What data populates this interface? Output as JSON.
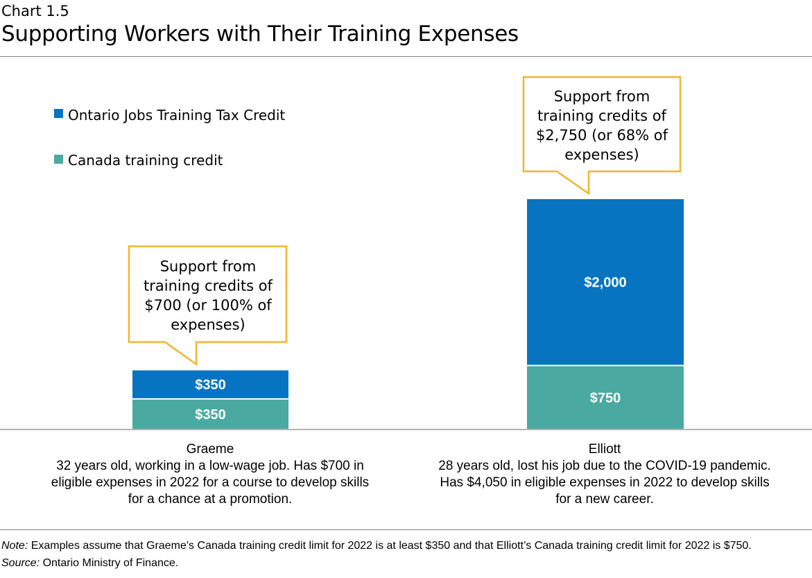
{
  "header": {
    "chart_number": "Chart 1.5",
    "title": "Supporting Workers with Their Training Expenses"
  },
  "colors": {
    "ontario": "#0674c1",
    "canada": "#4aa9a1",
    "callout_border": "#f2b530",
    "axis": "#9a9a9a"
  },
  "chart_data": {
    "type": "bar",
    "stacked": true,
    "title": "Supporting Workers with Their Training Expenses",
    "categories": [
      "Graeme",
      "Elliott"
    ],
    "ylim": [
      0,
      2750
    ],
    "grid": false,
    "legend_position": "top-left",
    "series": [
      {
        "name": "Canada training credit",
        "values": [
          350,
          750
        ],
        "labels": [
          "$350",
          "$750"
        ],
        "color": "#4aa9a1"
      },
      {
        "name": "Ontario Jobs Training Tax Credit",
        "values": [
          350,
          2000
        ],
        "labels": [
          "$350",
          "$2,000"
        ],
        "color": "#0674c1"
      }
    ],
    "legend": [
      "Ontario Jobs Training Tax Credit",
      "Canada training credit"
    ],
    "annotations": [
      {
        "category": "Graeme",
        "lines": [
          "Support from",
          "training credits of",
          "$700 (or 100% of",
          "expenses)"
        ]
      },
      {
        "category": "Elliott",
        "lines": [
          "Support from",
          "training credits of",
          "$2,750 (or 68% of",
          "expenses)"
        ]
      }
    ]
  },
  "categories_detail": [
    {
      "name": "Graeme",
      "lines": [
        "32 years old, working in a low-wage job. Has $700 in",
        "eligible expenses in 2022 for a course to develop skills",
        "for a chance at a promotion."
      ]
    },
    {
      "name": "Elliott",
      "lines": [
        "28 years old, lost his job due to the COVID-19 pandemic.",
        "Has $4,050 in eligible expenses in 2022 to develop skills",
        "for a new career."
      ]
    }
  ],
  "footnotes": {
    "note_label": "Note:",
    "note_text": " Examples assume that Graeme’s Canada training credit limit for 2022 is at least $350 and that Elliott’s Canada training credit limit for 2022 is $750.",
    "source_label": "Source:",
    "source_text": " Ontario Ministry of Finance."
  }
}
